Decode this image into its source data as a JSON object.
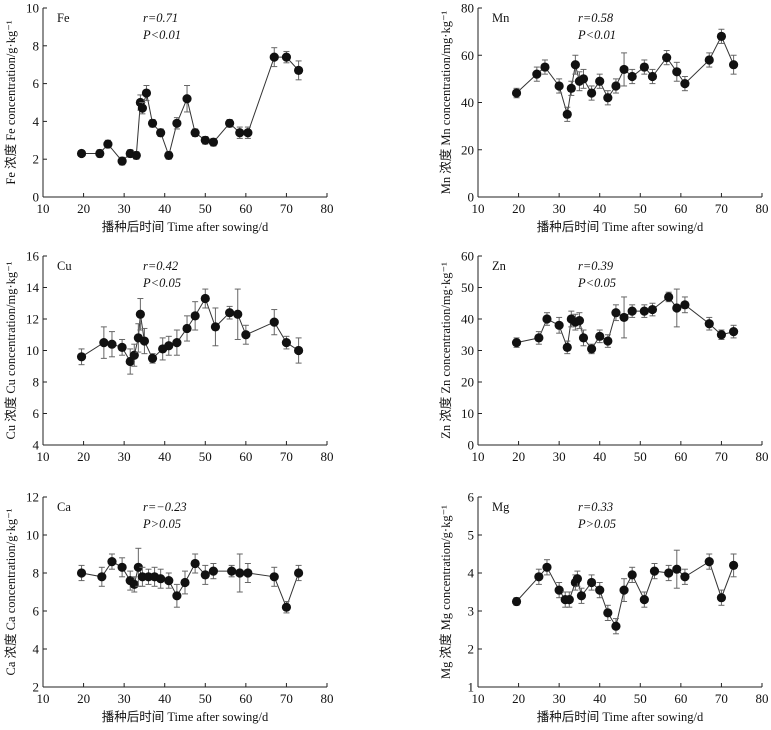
{
  "chart_data": [
    {
      "type": "scatter",
      "panel_label": "Fe",
      "r_text": "r=0.71",
      "p_text": "P<0.01",
      "xlabel": "播种后时间 Time after sowing/d",
      "ylabel": "Fe 浓度 Fe concentration/g·kg⁻¹",
      "xlim": [
        10,
        80
      ],
      "ylim": [
        0,
        10
      ],
      "xticks": [
        "10",
        "20",
        "30",
        "40",
        "50",
        "60",
        "70",
        "80"
      ],
      "yticks": [
        "0",
        "2",
        "4",
        "6",
        "8",
        "10"
      ],
      "x": [
        19.5,
        24,
        26,
        29.5,
        31.5,
        33,
        34,
        34.5,
        35.5,
        37,
        39,
        41,
        43,
        45.5,
        47.5,
        50,
        52,
        56,
        58.5,
        60.5,
        67,
        70,
        73
      ],
      "y": [
        2.3,
        2.3,
        2.8,
        1.9,
        2.3,
        2.2,
        5.0,
        4.7,
        5.5,
        3.9,
        3.4,
        2.2,
        3.9,
        5.2,
        3.4,
        3.0,
        2.9,
        3.9,
        3.4,
        3.4,
        7.4,
        7.4,
        6.7
      ],
      "err": [
        0.1,
        0.2,
        0.2,
        0.2,
        0.2,
        0.2,
        0.4,
        0.3,
        0.4,
        0.2,
        0.2,
        0.2,
        0.3,
        0.7,
        0.2,
        0.2,
        0.2,
        0.2,
        0.3,
        0.3,
        0.5,
        0.3,
        0.5
      ]
    },
    {
      "type": "scatter",
      "panel_label": "Mn",
      "r_text": "r=0.58",
      "p_text": "P<0.01",
      "xlabel": "播种后时间 Time after sowing/d",
      "ylabel": "Mn 浓度 Mn concentration/mg·kg⁻¹",
      "xlim": [
        10,
        80
      ],
      "ylim": [
        0,
        80
      ],
      "xticks": [
        "10",
        "20",
        "30",
        "40",
        "50",
        "60",
        "70",
        "80"
      ],
      "yticks": [
        "0",
        "20",
        "40",
        "60",
        "80"
      ],
      "x": [
        19.5,
        24.5,
        26.5,
        30,
        32,
        33,
        34,
        35,
        36,
        38,
        40,
        42,
        44,
        46,
        48,
        51,
        53,
        56.5,
        59,
        61,
        67,
        70,
        73
      ],
      "y": [
        44,
        52,
        55,
        47,
        35,
        46,
        56,
        49,
        50,
        44,
        49,
        42,
        47,
        54,
        51,
        55,
        51,
        59,
        53,
        48,
        58,
        68,
        56
      ],
      "err": [
        2,
        3,
        3,
        3,
        3,
        3,
        4,
        4,
        4,
        3,
        3,
        3,
        3,
        7,
        3,
        3,
        3,
        3,
        4,
        3,
        3,
        3,
        4
      ]
    },
    {
      "type": "scatter",
      "panel_label": "Cu",
      "r_text": "r=0.42",
      "p_text": "P<0.05",
      "xlabel": "",
      "ylabel": "Cu 浓度 Cu concentration/mg·kg⁻¹",
      "xlim": [
        10,
        80
      ],
      "ylim": [
        4,
        16
      ],
      "xticks": [
        "10",
        "20",
        "30",
        "40",
        "50",
        "60",
        "70",
        "80"
      ],
      "yticks": [
        "4",
        "6",
        "8",
        "10",
        "12",
        "14",
        "16"
      ],
      "x": [
        19.5,
        25,
        27,
        29.5,
        31.5,
        32.5,
        33.5,
        34,
        35,
        37,
        39.5,
        41,
        43,
        45.5,
        47.5,
        50,
        52.5,
        56,
        58,
        60,
        67,
        70,
        73
      ],
      "y": [
        9.6,
        10.5,
        10.4,
        10.2,
        9.3,
        9.7,
        10.8,
        12.3,
        10.6,
        9.5,
        10.1,
        10.3,
        10.5,
        11.4,
        12.2,
        13.3,
        11.5,
        12.4,
        12.3,
        11.0,
        11.8,
        10.5,
        10.0
      ],
      "err": [
        0.5,
        1.0,
        0.8,
        0.5,
        0.8,
        0.7,
        0.9,
        1.0,
        0.8,
        0.3,
        0.7,
        0.6,
        0.8,
        0.8,
        0.9,
        0.6,
        1.2,
        0.4,
        1.6,
        0.6,
        0.8,
        0.4,
        0.8
      ]
    },
    {
      "type": "scatter",
      "panel_label": "Zn",
      "r_text": "r=0.39",
      "p_text": "P<0.05",
      "xlabel": "",
      "ylabel": "Zn 浓度 Zn concentration/mg·kg⁻¹",
      "xlim": [
        10,
        80
      ],
      "ylim": [
        0,
        60
      ],
      "xticks": [
        "10",
        "20",
        "30",
        "40",
        "50",
        "60",
        "70",
        "80"
      ],
      "yticks": [
        "0",
        "10",
        "20",
        "30",
        "40",
        "50",
        "60"
      ],
      "x": [
        19.5,
        25,
        27,
        30,
        32,
        33,
        34,
        35,
        36,
        38,
        40,
        42,
        44,
        46,
        48,
        51,
        53,
        57,
        59,
        61,
        67,
        70,
        73
      ],
      "y": [
        32.5,
        34,
        40,
        38,
        31,
        40,
        39,
        39.5,
        34,
        30.5,
        34.5,
        33,
        42,
        40.5,
        42.5,
        42.5,
        43,
        47,
        43.5,
        44.5,
        38.5,
        35,
        36
      ],
      "err": [
        1.5,
        2,
        2,
        2.5,
        2,
        2.5,
        2.5,
        2.5,
        2.5,
        1.5,
        2,
        2,
        2.5,
        6.5,
        2,
        2,
        2,
        1.5,
        6,
        2.5,
        2,
        1.5,
        2
      ]
    },
    {
      "type": "scatter",
      "panel_label": "Ca",
      "r_text": "r=−0.23",
      "p_text": "P>0.05",
      "xlabel": "播种后时间 Time after sowing/d",
      "ylabel": "Ca 浓度 Ca concentration/g·kg⁻¹",
      "xlim": [
        10,
        80
      ],
      "ylim": [
        2,
        12
      ],
      "xticks": [
        "10",
        "20",
        "30",
        "40",
        "50",
        "60",
        "70",
        "80"
      ],
      "yticks": [
        "2",
        "4",
        "6",
        "8",
        "10",
        "12"
      ],
      "x": [
        19.5,
        24.5,
        27,
        29.5,
        31.5,
        32.5,
        33.5,
        34.5,
        36,
        37.5,
        39,
        41,
        43,
        45,
        47.5,
        50,
        52,
        56.5,
        58.5,
        60.5,
        67,
        70,
        73
      ],
      "y": [
        8.0,
        7.8,
        8.6,
        8.3,
        7.6,
        7.4,
        8.3,
        7.8,
        7.8,
        7.8,
        7.7,
        7.6,
        6.8,
        7.5,
        8.5,
        7.9,
        8.1,
        8.1,
        8.0,
        8.0,
        7.8,
        6.2,
        8.0
      ],
      "err": [
        0.4,
        0.5,
        0.4,
        0.5,
        0.5,
        0.4,
        1.0,
        0.5,
        0.4,
        0.5,
        0.5,
        0.4,
        0.6,
        0.6,
        0.5,
        0.5,
        0.4,
        0.3,
        1.0,
        0.5,
        0.5,
        0.3,
        0.4
      ]
    },
    {
      "type": "scatter",
      "panel_label": "Mg",
      "r_text": "r=0.33",
      "p_text": "P>0.05",
      "xlabel": "播种后时间 Time after sowing/d",
      "ylabel": "Mg 浓度 Mg concentration/g·kg⁻¹",
      "xlim": [
        10,
        80
      ],
      "ylim": [
        1,
        6
      ],
      "xticks": [
        "10",
        "20",
        "30",
        "40",
        "50",
        "60",
        "70",
        "80"
      ],
      "yticks": [
        "1",
        "2",
        "3",
        "4",
        "5",
        "6"
      ],
      "x": [
        19.5,
        25,
        27,
        30,
        31.5,
        32.5,
        34,
        34.5,
        35.5,
        38,
        40,
        42,
        44,
        46,
        48,
        51,
        53.5,
        57,
        59,
        61,
        67,
        70,
        73
      ],
      "y": [
        3.25,
        3.9,
        4.15,
        3.55,
        3.3,
        3.3,
        3.75,
        3.85,
        3.4,
        3.75,
        3.55,
        2.95,
        2.6,
        3.55,
        3.95,
        3.3,
        4.05,
        4.0,
        4.1,
        3.9,
        4.3,
        3.35,
        4.2
      ],
      "err": [
        0.1,
        0.2,
        0.2,
        0.2,
        0.2,
        0.2,
        0.2,
        0.2,
        0.2,
        0.2,
        0.2,
        0.2,
        0.2,
        0.3,
        0.2,
        0.2,
        0.2,
        0.2,
        0.5,
        0.2,
        0.2,
        0.2,
        0.3
      ]
    }
  ]
}
